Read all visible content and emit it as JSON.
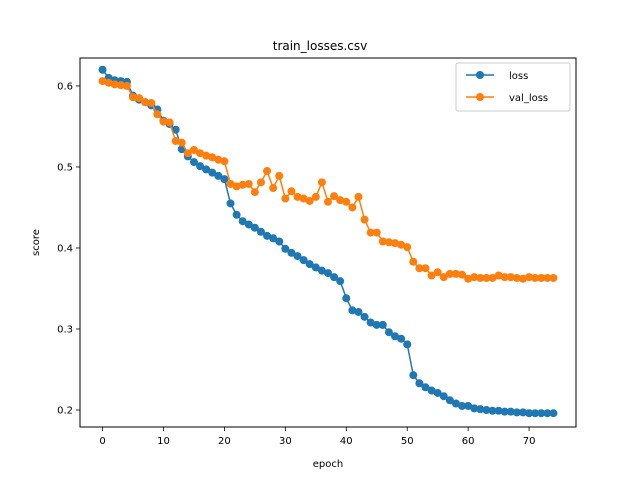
{
  "chart_data": {
    "type": "line",
    "title": "train_losses.csv",
    "xlabel": "epoch",
    "ylabel": "score",
    "xlim": [
      -3.7,
      77.7
    ],
    "ylim": [
      0.179,
      0.6345
    ],
    "xticks": [
      0,
      10,
      20,
      30,
      40,
      50,
      60,
      70
    ],
    "yticks": [
      0.2,
      0.3,
      0.4,
      0.5,
      0.6
    ],
    "ytick_labels": [
      "0.2",
      "0.3",
      "0.4",
      "0.5",
      "0.6"
    ],
    "grid": false,
    "legend_position": "top-right",
    "colors": {
      "loss": "#1f77b4",
      "val_loss": "#ff7f0e"
    },
    "x": [
      0,
      1,
      2,
      3,
      4,
      5,
      6,
      7,
      8,
      9,
      10,
      11,
      12,
      13,
      14,
      15,
      16,
      17,
      18,
      19,
      20,
      21,
      22,
      23,
      24,
      25,
      26,
      27,
      28,
      29,
      30,
      31,
      32,
      33,
      34,
      35,
      36,
      37,
      38,
      39,
      40,
      41,
      42,
      43,
      44,
      45,
      46,
      47,
      48,
      49,
      50,
      51,
      52,
      53,
      54,
      55,
      56,
      57,
      58,
      59,
      60,
      61,
      62,
      63,
      64,
      65,
      66,
      67,
      68,
      69,
      70,
      71,
      72,
      73,
      74
    ],
    "series": [
      {
        "name": "loss",
        "values": [
          0.62,
          0.61,
          0.607,
          0.606,
          0.605,
          0.588,
          0.583,
          0.58,
          0.576,
          0.571,
          0.557,
          0.553,
          0.546,
          0.522,
          0.513,
          0.506,
          0.501,
          0.497,
          0.493,
          0.489,
          0.485,
          0.455,
          0.441,
          0.433,
          0.429,
          0.425,
          0.42,
          0.415,
          0.412,
          0.408,
          0.399,
          0.394,
          0.39,
          0.385,
          0.38,
          0.376,
          0.372,
          0.369,
          0.364,
          0.359,
          0.338,
          0.323,
          0.321,
          0.315,
          0.308,
          0.305,
          0.305,
          0.296,
          0.291,
          0.288,
          0.281,
          0.243,
          0.233,
          0.228,
          0.224,
          0.221,
          0.217,
          0.212,
          0.208,
          0.205,
          0.205,
          0.202,
          0.201,
          0.2,
          0.199,
          0.199,
          0.198,
          0.198,
          0.197,
          0.197,
          0.196,
          0.196,
          0.196,
          0.196,
          0.196
        ]
      },
      {
        "name": "val_loss",
        "values": [
          0.606,
          0.604,
          0.602,
          0.601,
          0.6,
          0.586,
          0.585,
          0.58,
          0.579,
          0.565,
          0.556,
          0.555,
          0.532,
          0.53,
          0.517,
          0.521,
          0.517,
          0.514,
          0.512,
          0.509,
          0.507,
          0.479,
          0.476,
          0.478,
          0.479,
          0.469,
          0.481,
          0.495,
          0.474,
          0.489,
          0.461,
          0.47,
          0.463,
          0.461,
          0.458,
          0.463,
          0.481,
          0.457,
          0.464,
          0.459,
          0.457,
          0.45,
          0.463,
          0.435,
          0.419,
          0.419,
          0.408,
          0.407,
          0.406,
          0.404,
          0.401,
          0.383,
          0.375,
          0.375,
          0.366,
          0.37,
          0.364,
          0.368,
          0.368,
          0.367,
          0.362,
          0.364,
          0.363,
          0.363,
          0.363,
          0.366,
          0.364,
          0.364,
          0.363,
          0.362,
          0.364,
          0.363,
          0.363,
          0.363,
          0.363
        ]
      }
    ]
  }
}
